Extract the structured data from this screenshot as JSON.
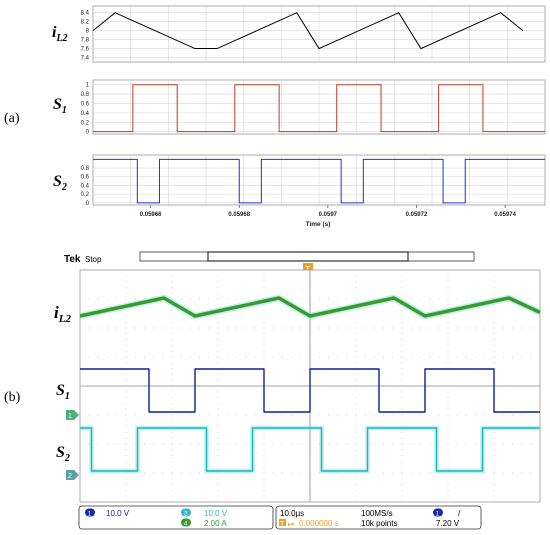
{
  "labels": {
    "panel_a": "(a)",
    "panel_b": "(b)",
    "il2_main": "i",
    "il2_sub": "L2",
    "s1_main": "S",
    "s1_sub": "1",
    "s2_main": "S",
    "s2_sub": "2"
  },
  "chart_data": [
    {
      "type": "line",
      "panel": "a",
      "series": [
        {
          "name": "iL2",
          "color": "#000000",
          "x": [
            0.059647,
            0.059652,
            0.05967,
            0.059675,
            0.059693,
            0.059698,
            0.059716,
            0.059721,
            0.059739,
            0.059744
          ],
          "y": [
            8.0,
            8.4,
            7.6,
            7.6,
            8.4,
            7.6,
            8.4,
            7.6,
            8.4,
            8.0
          ]
        }
      ],
      "yticks": [
        "8.4",
        "8.2",
        "8",
        "7.8",
        "7.6",
        "7.4"
      ],
      "ylim": [
        7.3,
        8.55
      ],
      "xlim": [
        0.059647,
        0.059749
      ]
    },
    {
      "type": "line",
      "panel": "a",
      "series": [
        {
          "name": "S1",
          "color": "#c0392b",
          "x": [
            0.059647,
            0.059656,
            0.059656,
            0.059666,
            0.059666,
            0.059679,
            0.059679,
            0.059689,
            0.059689,
            0.059702,
            0.059702,
            0.059712,
            0.059712,
            0.059725,
            0.059725,
            0.059735,
            0.059735,
            0.059749
          ],
          "y": [
            0,
            0,
            1,
            1,
            0,
            0,
            1,
            1,
            0,
            0,
            1,
            1,
            0,
            0,
            1,
            1,
            0,
            0
          ]
        }
      ],
      "yticks": [
        "1",
        "0.8",
        "0.6",
        "0.4",
        "0.2",
        "0"
      ],
      "ylim": [
        -0.05,
        1.1
      ],
      "xlim": [
        0.059647,
        0.059749
      ]
    },
    {
      "type": "line",
      "panel": "a",
      "series": [
        {
          "name": "S2",
          "color": "#2330d8",
          "x": [
            0.059647,
            0.059657,
            0.059657,
            0.059662,
            0.059662,
            0.05968,
            0.05968,
            0.059685,
            0.059685,
            0.059703,
            0.059703,
            0.059708,
            0.059708,
            0.059726,
            0.059726,
            0.059731,
            0.059731,
            0.059749
          ],
          "y": [
            1,
            1,
            0,
            0,
            1,
            1,
            0,
            0,
            1,
            1,
            0,
            0,
            1,
            1,
            0,
            0,
            1,
            1
          ]
        }
      ],
      "yticks": [
        "0.8",
        "0.6",
        "0.4",
        "0.2",
        "0"
      ],
      "ylim": [
        -0.05,
        1.1
      ],
      "xlim": [
        0.059647,
        0.059749
      ],
      "xticks": [
        "0.05966",
        "0.05968",
        "0.0597",
        "0.05972",
        "0.05974"
      ],
      "xlabel": "Time (s)"
    },
    {
      "type": "line",
      "panel": "b",
      "scope": {
        "brand": "Tek",
        "state": "Stop",
        "trigger_marker": "T",
        "ch1_scale": "10.0 V",
        "ch2_scale": "10.0 V",
        "ch4_scale": "2.00 A",
        "ch1_num": "1",
        "ch2_num": "2",
        "ch4_num": "4",
        "timebase": "10.0µs",
        "sample_rate": "100MS/s",
        "trigger_offset": "0.000000 s",
        "record_length": "10k points",
        "trigger_channel": "1",
        "trigger_slope": "/",
        "trigger_level": "7.20 V",
        "marker_ch1": "1",
        "marker_ch2": "2"
      },
      "series": [
        {
          "name": "iL2",
          "color": "#3a9a2a",
          "x": [
            0,
            7.3,
            10,
            17.3,
            20,
            27.3,
            30,
            37.3,
            40
          ],
          "y": [
            0,
            1,
            0,
            1,
            0,
            1,
            0,
            1,
            0.2
          ]
        },
        {
          "name": "S1",
          "color": "#0d1fa0",
          "x": [
            0,
            6.0,
            6.0,
            10.0,
            10.0,
            16.0,
            16.0,
            20.0,
            20.0,
            26.0,
            26.0,
            30.0,
            30.0,
            36.0,
            36.0,
            40.0
          ],
          "y": [
            1,
            1,
            0,
            0,
            1,
            1,
            0,
            0,
            1,
            1,
            0,
            0,
            1,
            1,
            0,
            0
          ]
        },
        {
          "name": "S2",
          "color": "#23b4c4",
          "x": [
            0,
            1.0,
            1.0,
            5.0,
            5.0,
            11.0,
            11.0,
            15.0,
            15.0,
            21.0,
            21.0,
            25.0,
            25.0,
            31.0,
            31.0,
            35.0,
            35.0,
            40.0
          ],
          "y": [
            1,
            1,
            0,
            0,
            1,
            1,
            0,
            0,
            1,
            1,
            0,
            0,
            1,
            1,
            0,
            0,
            1,
            1
          ]
        }
      ]
    }
  ]
}
